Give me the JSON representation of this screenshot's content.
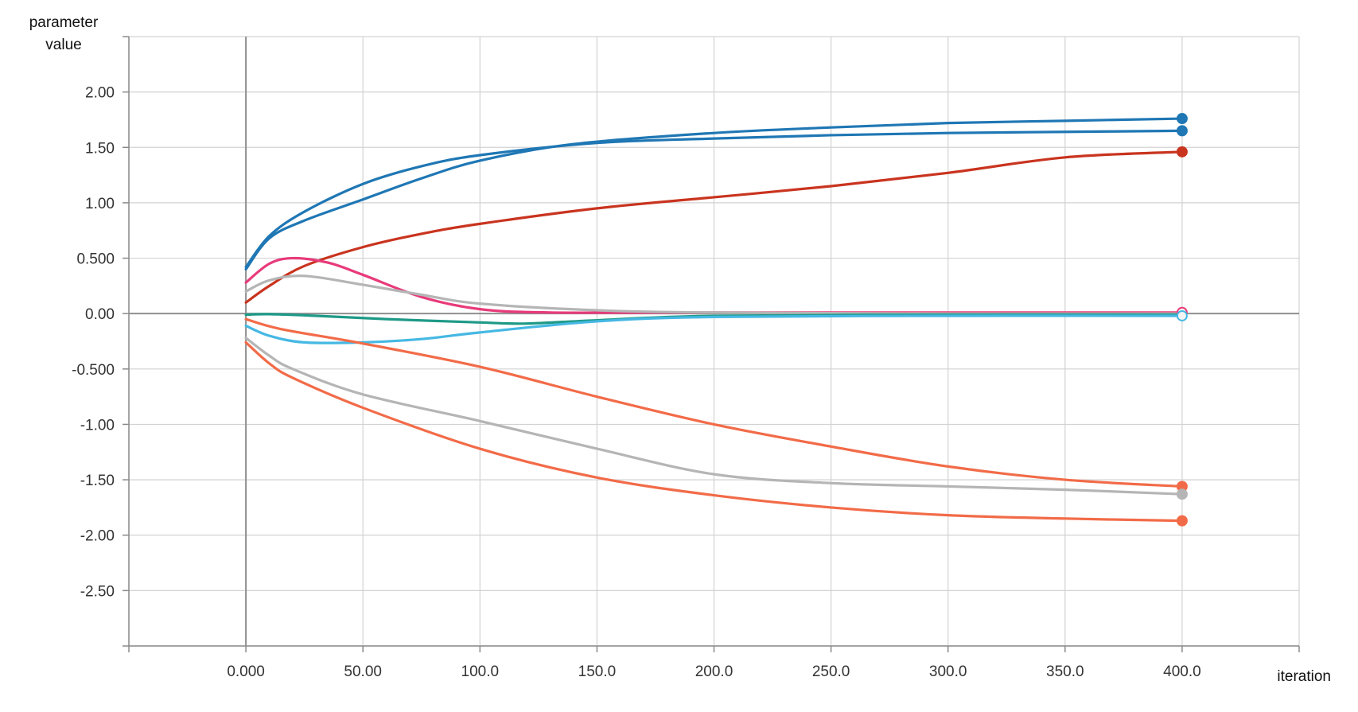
{
  "chart_data": {
    "type": "line",
    "ylabel": "parameter value",
    "xlabel": "iteration",
    "xlim": [
      -50,
      450
    ],
    "ylim": [
      -3,
      2.5
    ],
    "x_ticks": [
      0,
      50,
      100,
      150,
      200,
      250,
      300,
      350,
      400
    ],
    "x_tick_labels": [
      "0.000",
      "50.00",
      "100.0",
      "150.0",
      "200.0",
      "250.0",
      "300.0",
      "350.0",
      "400.0"
    ],
    "y_ticks": [
      -2.5,
      -2,
      -1.5,
      -1,
      -0.5,
      0,
      0.5,
      1,
      1.5,
      2
    ],
    "y_tick_labels": [
      "-2.50",
      "-2.00",
      "-1.50",
      "-1.00",
      "-0.500",
      "0.00",
      "0.500",
      "1.00",
      "1.50",
      "2.00"
    ],
    "grid": true,
    "series": [
      {
        "color": "#1f77b4",
        "end_marker": "filled",
        "points": [
          [
            0,
            0.42
          ],
          [
            10,
            0.7
          ],
          [
            25,
            0.92
          ],
          [
            50,
            1.17
          ],
          [
            75,
            1.33
          ],
          [
            100,
            1.43
          ],
          [
            150,
            1.54
          ],
          [
            200,
            1.58
          ],
          [
            250,
            1.61
          ],
          [
            300,
            1.63
          ],
          [
            350,
            1.64
          ],
          [
            400,
            1.65
          ]
        ]
      },
      {
        "color": "#1f77b4",
        "end_marker": "filled",
        "points": [
          [
            0,
            0.4
          ],
          [
            10,
            0.68
          ],
          [
            25,
            0.84
          ],
          [
            50,
            1.03
          ],
          [
            75,
            1.22
          ],
          [
            100,
            1.38
          ],
          [
            140,
            1.53
          ],
          [
            200,
            1.63
          ],
          [
            250,
            1.68
          ],
          [
            300,
            1.72
          ],
          [
            350,
            1.74
          ],
          [
            400,
            1.76
          ]
        ]
      },
      {
        "color": "#c9341f",
        "end_marker": "filled",
        "points": [
          [
            0,
            0.1
          ],
          [
            10,
            0.25
          ],
          [
            25,
            0.43
          ],
          [
            50,
            0.6
          ],
          [
            75,
            0.72
          ],
          [
            100,
            0.81
          ],
          [
            150,
            0.95
          ],
          [
            200,
            1.05
          ],
          [
            250,
            1.15
          ],
          [
            300,
            1.27
          ],
          [
            350,
            1.41
          ],
          [
            400,
            1.46
          ]
        ]
      },
      {
        "color": "#e83a7a",
        "end_marker": "hollow",
        "points": [
          [
            0,
            0.28
          ],
          [
            10,
            0.45
          ],
          [
            20,
            0.5
          ],
          [
            35,
            0.46
          ],
          [
            50,
            0.35
          ],
          [
            75,
            0.15
          ],
          [
            100,
            0.04
          ],
          [
            130,
            0.01
          ],
          [
            200,
            0.01
          ],
          [
            300,
            0.01
          ],
          [
            400,
            0.01
          ]
        ]
      },
      {
        "color": "#b5b5b5",
        "end_marker": "none",
        "points": [
          [
            0,
            0.2
          ],
          [
            10,
            0.3
          ],
          [
            25,
            0.34
          ],
          [
            50,
            0.26
          ],
          [
            75,
            0.17
          ],
          [
            100,
            0.09
          ],
          [
            150,
            0.03
          ],
          [
            200,
            0.01
          ],
          [
            300,
            0.0
          ],
          [
            400,
            0.0
          ]
        ]
      },
      {
        "color": "#1e9a87",
        "end_marker": "none",
        "points": [
          [
            0,
            -0.01
          ],
          [
            10,
            -0.005
          ],
          [
            30,
            -0.02
          ],
          [
            60,
            -0.05
          ],
          [
            100,
            -0.08
          ],
          [
            120,
            -0.09
          ],
          [
            150,
            -0.06
          ],
          [
            200,
            -0.02
          ],
          [
            300,
            -0.01
          ],
          [
            400,
            -0.01
          ]
        ]
      },
      {
        "color": "#45b8e3",
        "end_marker": "hollow",
        "points": [
          [
            0,
            -0.11
          ],
          [
            10,
            -0.2
          ],
          [
            25,
            -0.26
          ],
          [
            50,
            -0.26
          ],
          [
            75,
            -0.23
          ],
          [
            100,
            -0.17
          ],
          [
            150,
            -0.07
          ],
          [
            200,
            -0.03
          ],
          [
            300,
            -0.02
          ],
          [
            400,
            -0.02
          ]
        ]
      },
      {
        "color": "#f26b48",
        "end_marker": "filled",
        "points": [
          [
            0,
            -0.05
          ],
          [
            15,
            -0.14
          ],
          [
            50,
            -0.27
          ],
          [
            100,
            -0.48
          ],
          [
            150,
            -0.75
          ],
          [
            200,
            -1.0
          ],
          [
            250,
            -1.2
          ],
          [
            300,
            -1.38
          ],
          [
            350,
            -1.5
          ],
          [
            400,
            -1.56
          ]
        ]
      },
      {
        "color": "#b5b5b5",
        "end_marker": "filled",
        "points": [
          [
            0,
            -0.22
          ],
          [
            10,
            -0.38
          ],
          [
            20,
            -0.5
          ],
          [
            50,
            -0.73
          ],
          [
            100,
            -0.97
          ],
          [
            150,
            -1.22
          ],
          [
            200,
            -1.45
          ],
          [
            250,
            -1.53
          ],
          [
            300,
            -1.56
          ],
          [
            350,
            -1.59
          ],
          [
            400,
            -1.63
          ]
        ]
      },
      {
        "color": "#f26b48",
        "end_marker": "filled",
        "points": [
          [
            0,
            -0.26
          ],
          [
            10,
            -0.45
          ],
          [
            20,
            -0.58
          ],
          [
            50,
            -0.85
          ],
          [
            100,
            -1.22
          ],
          [
            150,
            -1.48
          ],
          [
            200,
            -1.64
          ],
          [
            250,
            -1.75
          ],
          [
            300,
            -1.82
          ],
          [
            350,
            -1.85
          ],
          [
            400,
            -1.87
          ]
        ]
      }
    ]
  }
}
